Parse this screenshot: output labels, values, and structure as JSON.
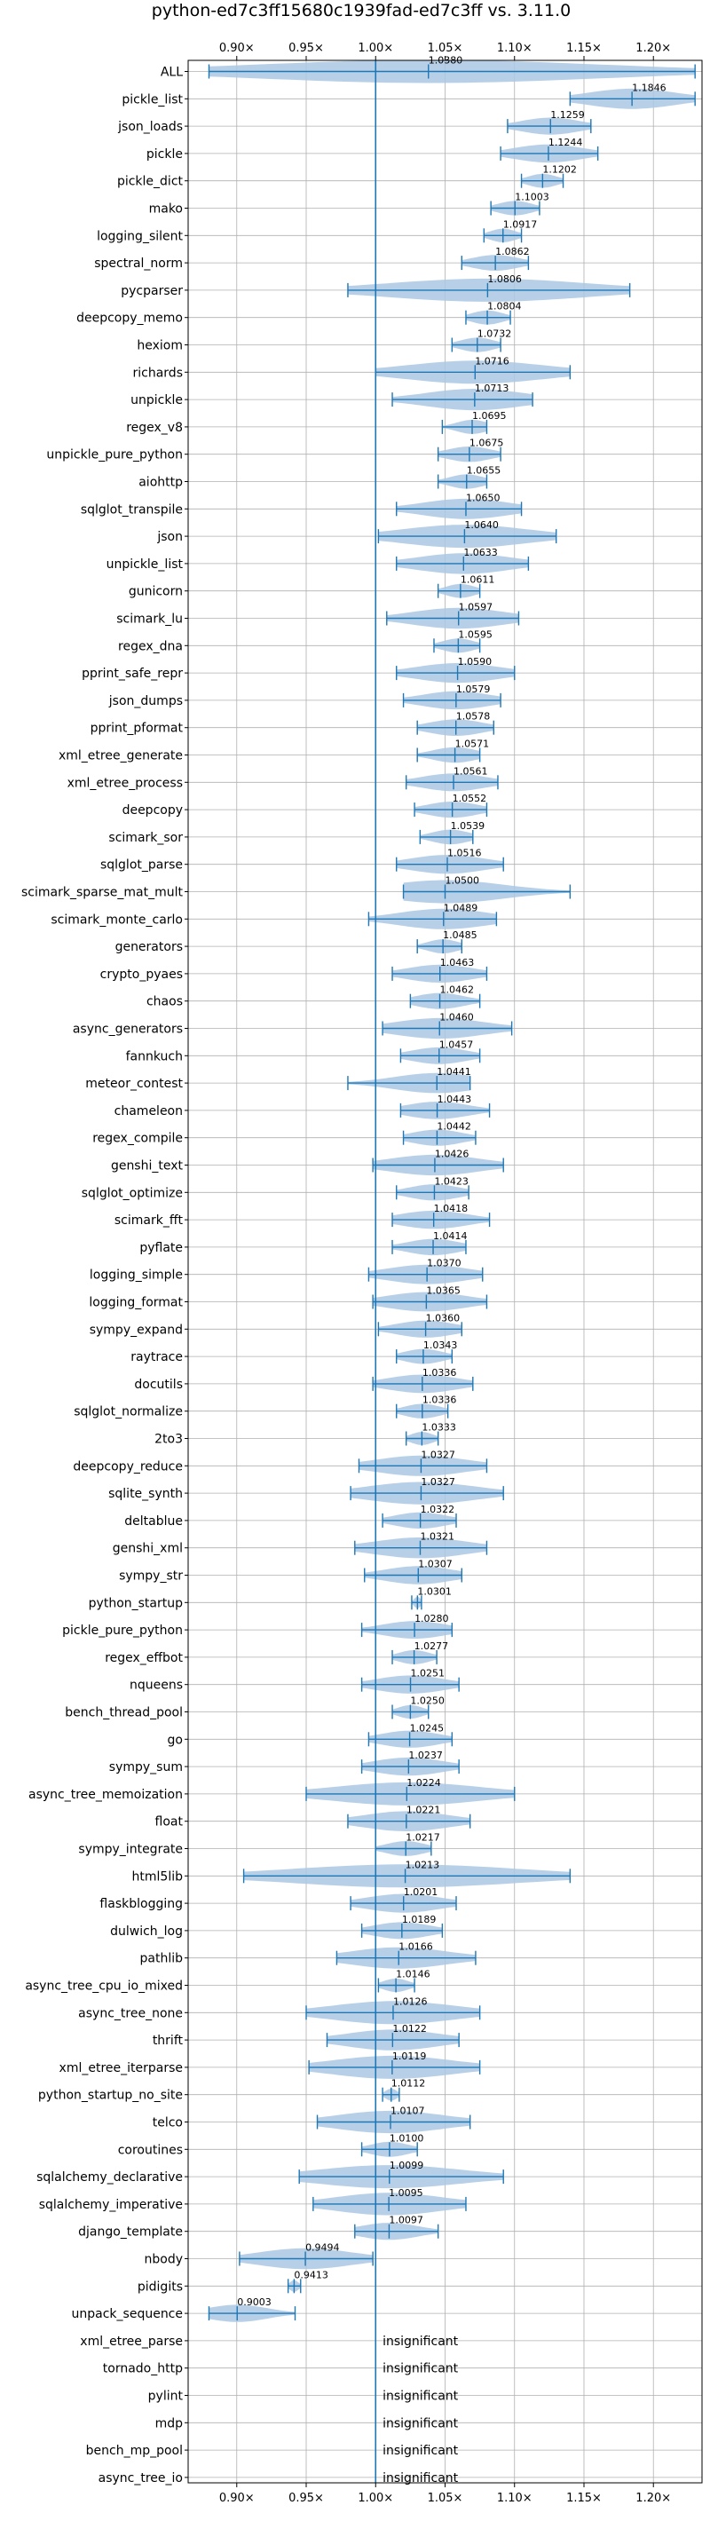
{
  "chart_data": {
    "type": "violin",
    "title": "python-ed7c3ff15680c1939fad-ed7c3ff vs. 3.11.0",
    "xlim": [
      0.865,
      1.235
    ],
    "xticks": [
      0.9,
      0.95,
      1.0,
      1.05,
      1.1,
      1.15,
      1.2
    ],
    "xtick_labels": [
      "0.90×",
      "0.95×",
      "1.00×",
      "1.05×",
      "1.10×",
      "1.15×",
      "1.20×"
    ],
    "ticks_top_and_bottom": true,
    "reference_line": 1.0,
    "grid": true,
    "colors": {
      "violin": "#aac8e4",
      "line": "#1f77b4",
      "grid": "#b0b0b0"
    },
    "insignificant_text": "insignificant",
    "rows": [
      {
        "name": "ALL",
        "median": 1.038,
        "min": 0.88,
        "max": 1.23,
        "label": "1.0380"
      },
      {
        "name": "pickle_list",
        "median": 1.1846,
        "min": 1.14,
        "max": 1.23,
        "label": "1.1846"
      },
      {
        "name": "json_loads",
        "median": 1.1259,
        "min": 1.095,
        "max": 1.155,
        "label": "1.1259"
      },
      {
        "name": "pickle",
        "median": 1.1244,
        "min": 1.09,
        "max": 1.16,
        "label": "1.1244"
      },
      {
        "name": "pickle_dict",
        "median": 1.1202,
        "min": 1.105,
        "max": 1.135,
        "label": "1.1202"
      },
      {
        "name": "mako",
        "median": 1.1003,
        "min": 1.083,
        "max": 1.118,
        "label": "1.1003"
      },
      {
        "name": "logging_silent",
        "median": 1.0917,
        "min": 1.078,
        "max": 1.105,
        "label": "1.0917"
      },
      {
        "name": "spectral_norm",
        "median": 1.0862,
        "min": 1.062,
        "max": 1.11,
        "label": "1.0862"
      },
      {
        "name": "pycparser",
        "median": 1.0806,
        "min": 0.98,
        "max": 1.183,
        "label": "1.0806"
      },
      {
        "name": "deepcopy_memo",
        "median": 1.0804,
        "min": 1.065,
        "max": 1.097,
        "label": "1.0804"
      },
      {
        "name": "hexiom",
        "median": 1.0732,
        "min": 1.055,
        "max": 1.09,
        "label": "1.0732"
      },
      {
        "name": "richards",
        "median": 1.0716,
        "min": 1.0,
        "max": 1.14,
        "label": "1.0716"
      },
      {
        "name": "unpickle",
        "median": 1.0713,
        "min": 1.012,
        "max": 1.113,
        "label": "1.0713"
      },
      {
        "name": "regex_v8",
        "median": 1.0695,
        "min": 1.048,
        "max": 1.08,
        "label": "1.0695"
      },
      {
        "name": "unpickle_pure_python",
        "median": 1.0675,
        "min": 1.045,
        "max": 1.09,
        "label": "1.0675"
      },
      {
        "name": "aiohttp",
        "median": 1.0655,
        "min": 1.045,
        "max": 1.08,
        "label": "1.0655"
      },
      {
        "name": "sqlglot_transpile",
        "median": 1.065,
        "min": 1.015,
        "max": 1.105,
        "label": "1.0650"
      },
      {
        "name": "json",
        "median": 1.064,
        "min": 1.002,
        "max": 1.13,
        "label": "1.0640"
      },
      {
        "name": "unpickle_list",
        "median": 1.0633,
        "min": 1.015,
        "max": 1.11,
        "label": "1.0633"
      },
      {
        "name": "gunicorn",
        "median": 1.0611,
        "min": 1.045,
        "max": 1.075,
        "label": "1.0611"
      },
      {
        "name": "scimark_lu",
        "median": 1.0597,
        "min": 1.008,
        "max": 1.103,
        "label": "1.0597"
      },
      {
        "name": "regex_dna",
        "median": 1.0595,
        "min": 1.042,
        "max": 1.075,
        "label": "1.0595"
      },
      {
        "name": "pprint_safe_repr",
        "median": 1.059,
        "min": 1.015,
        "max": 1.1,
        "label": "1.0590"
      },
      {
        "name": "json_dumps",
        "median": 1.0579,
        "min": 1.02,
        "max": 1.09,
        "label": "1.0579"
      },
      {
        "name": "pprint_pformat",
        "median": 1.0578,
        "min": 1.03,
        "max": 1.085,
        "label": "1.0578"
      },
      {
        "name": "xml_etree_generate",
        "median": 1.0571,
        "min": 1.03,
        "max": 1.075,
        "label": "1.0571"
      },
      {
        "name": "xml_etree_process",
        "median": 1.0561,
        "min": 1.022,
        "max": 1.088,
        "label": "1.0561"
      },
      {
        "name": "deepcopy",
        "median": 1.0552,
        "min": 1.028,
        "max": 1.08,
        "label": "1.0552"
      },
      {
        "name": "scimark_sor",
        "median": 1.0539,
        "min": 1.032,
        "max": 1.07,
        "label": "1.0539"
      },
      {
        "name": "sqlglot_parse",
        "median": 1.0516,
        "min": 1.015,
        "max": 1.092,
        "label": "1.0516"
      },
      {
        "name": "scimark_sparse_mat_mult",
        "median": 1.05,
        "min": 1.02,
        "max": 1.14,
        "label": "1.0500"
      },
      {
        "name": "scimark_monte_carlo",
        "median": 1.0489,
        "min": 0.995,
        "max": 1.087,
        "label": "1.0489"
      },
      {
        "name": "generators",
        "median": 1.0485,
        "min": 1.03,
        "max": 1.062,
        "label": "1.0485"
      },
      {
        "name": "crypto_pyaes",
        "median": 1.0463,
        "min": 1.012,
        "max": 1.08,
        "label": "1.0463"
      },
      {
        "name": "chaos",
        "median": 1.0462,
        "min": 1.025,
        "max": 1.075,
        "label": "1.0462"
      },
      {
        "name": "async_generators",
        "median": 1.046,
        "min": 1.005,
        "max": 1.098,
        "label": "1.0460"
      },
      {
        "name": "fannkuch",
        "median": 1.0457,
        "min": 1.018,
        "max": 1.075,
        "label": "1.0457"
      },
      {
        "name": "meteor_contest",
        "median": 1.0441,
        "min": 0.98,
        "max": 1.068,
        "label": "1.0441"
      },
      {
        "name": "chameleon",
        "median": 1.0443,
        "min": 1.018,
        "max": 1.082,
        "label": "1.0443"
      },
      {
        "name": "regex_compile",
        "median": 1.0442,
        "min": 1.02,
        "max": 1.072,
        "label": "1.0442"
      },
      {
        "name": "genshi_text",
        "median": 1.0426,
        "min": 0.998,
        "max": 1.092,
        "label": "1.0426"
      },
      {
        "name": "sqlglot_optimize",
        "median": 1.0423,
        "min": 1.015,
        "max": 1.067,
        "label": "1.0423"
      },
      {
        "name": "scimark_fft",
        "median": 1.0418,
        "min": 1.012,
        "max": 1.082,
        "label": "1.0418"
      },
      {
        "name": "pyflate",
        "median": 1.0414,
        "min": 1.012,
        "max": 1.065,
        "label": "1.0414"
      },
      {
        "name": "logging_simple",
        "median": 1.037,
        "min": 0.995,
        "max": 1.077,
        "label": "1.0370"
      },
      {
        "name": "logging_format",
        "median": 1.0365,
        "min": 0.998,
        "max": 1.08,
        "label": "1.0365"
      },
      {
        "name": "sympy_expand",
        "median": 1.036,
        "min": 1.002,
        "max": 1.062,
        "label": "1.0360"
      },
      {
        "name": "raytrace",
        "median": 1.0343,
        "min": 1.015,
        "max": 1.055,
        "label": "1.0343"
      },
      {
        "name": "docutils",
        "median": 1.0336,
        "min": 0.998,
        "max": 1.07,
        "label": "1.0336"
      },
      {
        "name": "sqlglot_normalize",
        "median": 1.0336,
        "min": 1.015,
        "max": 1.052,
        "label": "1.0336"
      },
      {
        "name": "2to3",
        "median": 1.0333,
        "min": 1.022,
        "max": 1.045,
        "label": "1.0333"
      },
      {
        "name": "deepcopy_reduce",
        "median": 1.0327,
        "min": 0.988,
        "max": 1.08,
        "label": "1.0327"
      },
      {
        "name": "sqlite_synth",
        "median": 1.0327,
        "min": 0.982,
        "max": 1.092,
        "label": "1.0327"
      },
      {
        "name": "deltablue",
        "median": 1.0322,
        "min": 1.005,
        "max": 1.058,
        "label": "1.0322"
      },
      {
        "name": "genshi_xml",
        "median": 1.0321,
        "min": 0.985,
        "max": 1.08,
        "label": "1.0321"
      },
      {
        "name": "sympy_str",
        "median": 1.0307,
        "min": 0.992,
        "max": 1.062,
        "label": "1.0307"
      },
      {
        "name": "python_startup",
        "median": 1.0301,
        "min": 1.026,
        "max": 1.033,
        "label": "1.0301"
      },
      {
        "name": "pickle_pure_python",
        "median": 1.028,
        "min": 0.99,
        "max": 1.055,
        "label": "1.0280"
      },
      {
        "name": "regex_effbot",
        "median": 1.0277,
        "min": 1.012,
        "max": 1.044,
        "label": "1.0277"
      },
      {
        "name": "nqueens",
        "median": 1.0251,
        "min": 0.99,
        "max": 1.06,
        "label": "1.0251"
      },
      {
        "name": "bench_thread_pool",
        "median": 1.025,
        "min": 1.012,
        "max": 1.038,
        "label": "1.0250"
      },
      {
        "name": "go",
        "median": 1.0245,
        "min": 0.995,
        "max": 1.055,
        "label": "1.0245"
      },
      {
        "name": "sympy_sum",
        "median": 1.0237,
        "min": 0.99,
        "max": 1.06,
        "label": "1.0237"
      },
      {
        "name": "async_tree_memoization",
        "median": 1.0224,
        "min": 0.95,
        "max": 1.1,
        "label": "1.0224"
      },
      {
        "name": "float",
        "median": 1.0221,
        "min": 0.98,
        "max": 1.068,
        "label": "1.0221"
      },
      {
        "name": "sympy_integrate",
        "median": 1.0217,
        "min": 1.0,
        "max": 1.04,
        "label": "1.0217"
      },
      {
        "name": "html5lib",
        "median": 1.0213,
        "min": 0.905,
        "max": 1.14,
        "label": "1.0213"
      },
      {
        "name": "flaskblogging",
        "median": 1.0201,
        "min": 0.982,
        "max": 1.058,
        "label": "1.0201"
      },
      {
        "name": "dulwich_log",
        "median": 1.0189,
        "min": 0.99,
        "max": 1.048,
        "label": "1.0189"
      },
      {
        "name": "pathlib",
        "median": 1.0166,
        "min": 0.972,
        "max": 1.072,
        "label": "1.0166"
      },
      {
        "name": "async_tree_cpu_io_mixed",
        "median": 1.0146,
        "min": 1.002,
        "max": 1.028,
        "label": "1.0146"
      },
      {
        "name": "async_tree_none",
        "median": 1.0126,
        "min": 0.95,
        "max": 1.075,
        "label": "1.0126"
      },
      {
        "name": "thrift",
        "median": 1.0122,
        "min": 0.965,
        "max": 1.06,
        "label": "1.0122"
      },
      {
        "name": "xml_etree_iterparse",
        "median": 1.0119,
        "min": 0.952,
        "max": 1.075,
        "label": "1.0119"
      },
      {
        "name": "python_startup_no_site",
        "median": 1.0112,
        "min": 1.005,
        "max": 1.017,
        "label": "1.0112"
      },
      {
        "name": "telco",
        "median": 1.0107,
        "min": 0.958,
        "max": 1.068,
        "label": "1.0107"
      },
      {
        "name": "coroutines",
        "median": 1.01,
        "min": 0.99,
        "max": 1.03,
        "label": "1.0100"
      },
      {
        "name": "sqlalchemy_declarative",
        "median": 1.0099,
        "min": 0.945,
        "max": 1.092,
        "label": "1.0099"
      },
      {
        "name": "sqlalchemy_imperative",
        "median": 1.0095,
        "min": 0.955,
        "max": 1.065,
        "label": "1.0095"
      },
      {
        "name": "django_template",
        "median": 1.0097,
        "min": 0.985,
        "max": 1.045,
        "label": "1.0097"
      },
      {
        "name": "nbody",
        "median": 0.9494,
        "min": 0.902,
        "max": 0.998,
        "label": "0.9494"
      },
      {
        "name": "pidigits",
        "median": 0.9413,
        "min": 0.937,
        "max": 0.946,
        "label": "0.9413"
      },
      {
        "name": "unpack_sequence",
        "median": 0.9003,
        "min": 0.88,
        "max": 0.942,
        "label": "0.9003"
      },
      {
        "name": "xml_etree_parse",
        "insignificant": true
      },
      {
        "name": "tornado_http",
        "insignificant": true
      },
      {
        "name": "pylint",
        "insignificant": true
      },
      {
        "name": "mdp",
        "insignificant": true
      },
      {
        "name": "bench_mp_pool",
        "insignificant": true
      },
      {
        "name": "async_tree_io",
        "insignificant": true
      }
    ]
  }
}
